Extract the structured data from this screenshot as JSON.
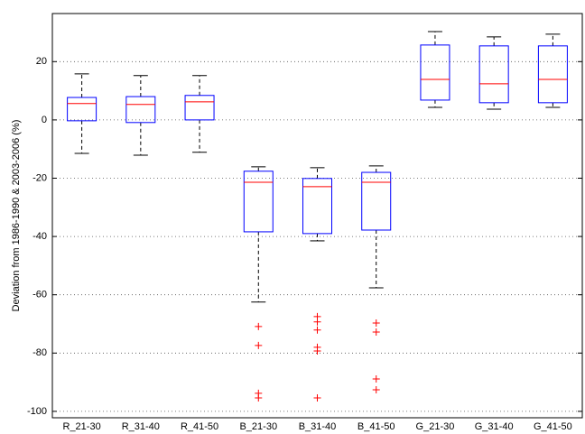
{
  "chart_data": {
    "type": "box",
    "y_label": "Deviation from 1986-1990 & 2003-2006 (%)",
    "categories": [
      "R_21-30",
      "R_31-40",
      "R_41-50",
      "B_21-30",
      "B_31-40",
      "B_41-50",
      "G_21-30",
      "G_31-40",
      "G_41-50"
    ],
    "boxes": [
      {
        "min": -11.5,
        "q1": -0.3,
        "median": 5.6,
        "q3": 7.7,
        "max": 15.8,
        "outliers": []
      },
      {
        "min": -12.1,
        "q1": -0.9,
        "median": 5.3,
        "q3": 8.0,
        "max": 15.2,
        "outliers": []
      },
      {
        "min": -11.1,
        "q1": 0.0,
        "median": 6.2,
        "q3": 8.4,
        "max": 15.2,
        "outliers": []
      },
      {
        "min": -62.5,
        "q1": -38.4,
        "median": -21.4,
        "q3": -17.6,
        "max": -16.1,
        "outliers": [
          -70.9,
          -77.4,
          -93.8,
          -95.4
        ]
      },
      {
        "min": -41.5,
        "q1": -39.0,
        "median": -22.9,
        "q3": -20.1,
        "max": -16.4,
        "outliers": [
          -67.5,
          -69.3,
          -72.1,
          -78.0,
          -79.3,
          -95.4
        ]
      },
      {
        "min": -57.6,
        "q1": -37.8,
        "median": -21.4,
        "q3": -18.0,
        "max": -15.8,
        "outliers": [
          -69.7,
          -72.8,
          -88.9,
          -92.6
        ]
      },
      {
        "min": 4.3,
        "q1": 6.8,
        "median": 13.9,
        "q3": 25.7,
        "max": 30.3,
        "outliers": []
      },
      {
        "min": 3.7,
        "q1": 5.9,
        "median": 12.4,
        "q3": 25.4,
        "max": 28.5,
        "outliers": []
      },
      {
        "min": 4.3,
        "q1": 5.9,
        "median": 13.9,
        "q3": 25.4,
        "max": 29.4,
        "outliers": []
      }
    ],
    "box_color": "#0000ff",
    "median_color": "#ff0000",
    "whisker_color": "#000000",
    "outlier_color": "#ff0000",
    "ylim": [
      -102.2,
      36.5
    ],
    "yticks": [
      -100,
      -80,
      -60,
      -40,
      -20,
      0,
      20
    ],
    "grid": true
  }
}
